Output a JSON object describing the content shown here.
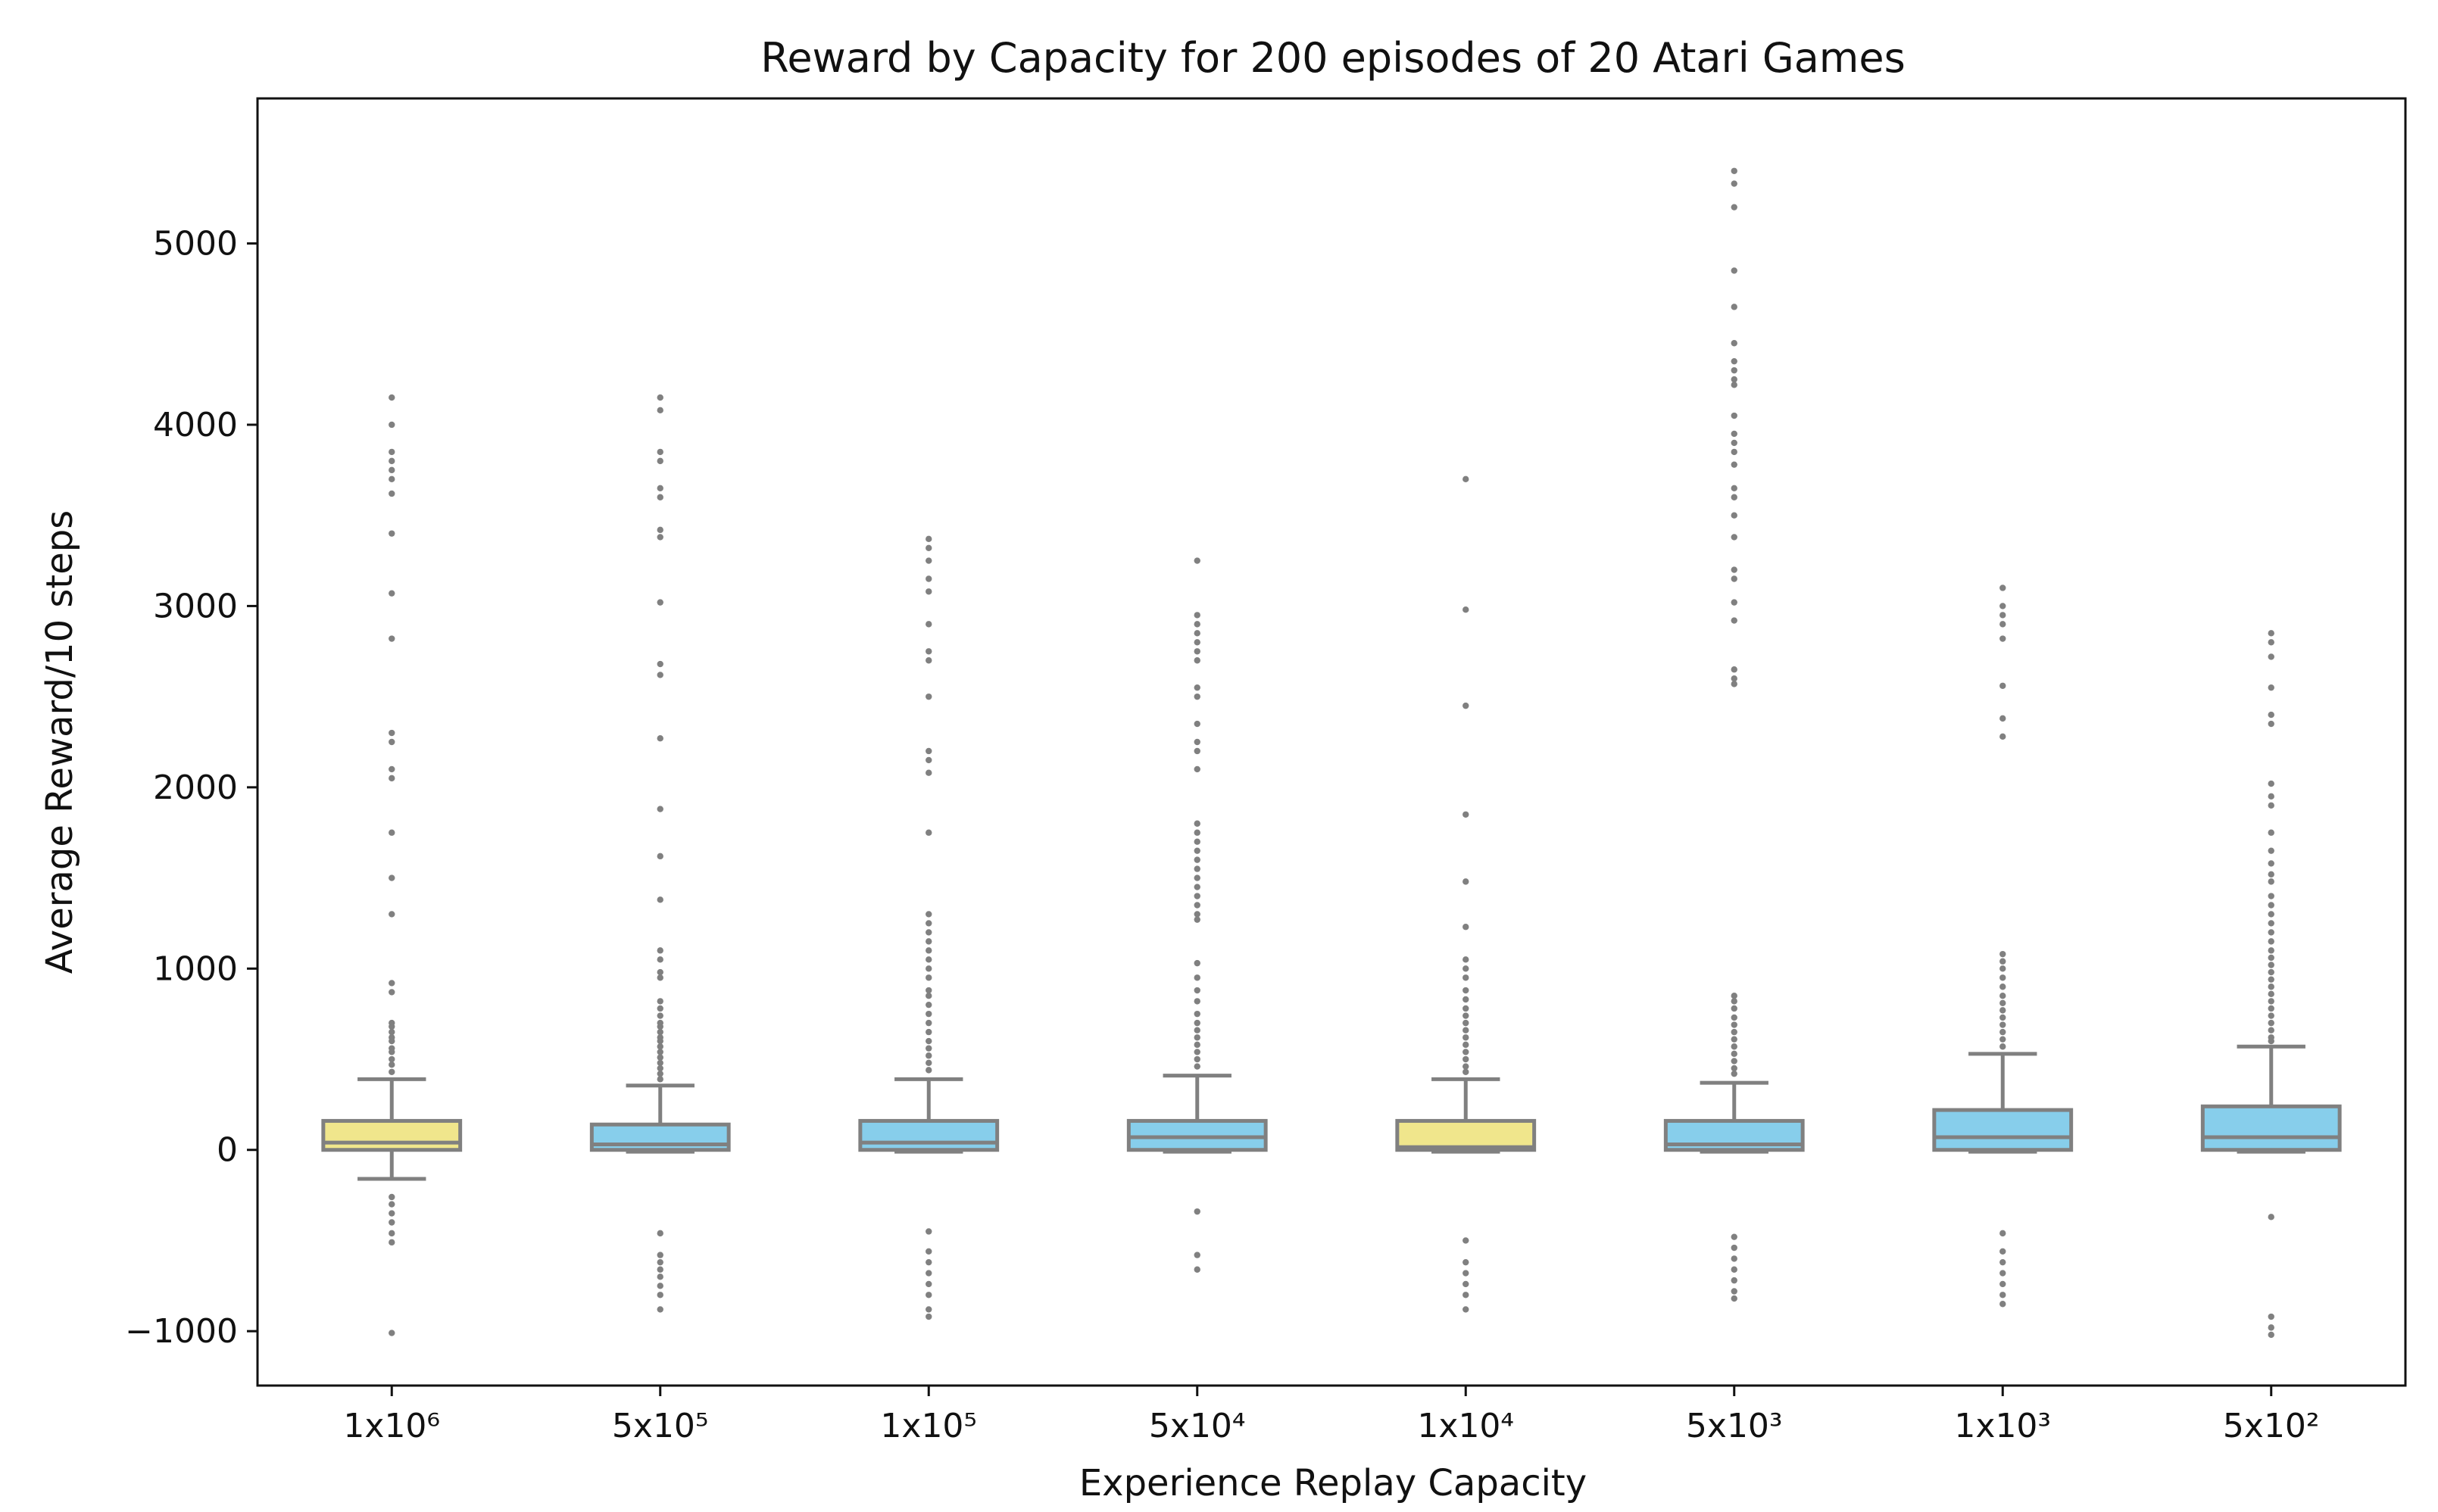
{
  "chart_data": {
    "type": "box",
    "title": "Reward by Capacity for 200 episodes of 20 Atari Games",
    "xlabel": "Experience Replay Capacity",
    "ylabel": "Average Reward/10 steps",
    "ylim": [
      -1300,
      5800
    ],
    "yticks": [
      -1000,
      0,
      1000,
      2000,
      3000,
      4000,
      5000
    ],
    "ytick_labels": [
      "−1000",
      "0",
      "1000",
      "2000",
      "3000",
      "4000",
      "5000"
    ],
    "categories": [
      "1x10⁶",
      "5x10⁵",
      "1x10⁵",
      "5x10⁴",
      "1x10⁴",
      "5x10³",
      "1x10³",
      "5x10²"
    ],
    "colors": {
      "highlight": "#f0e68c",
      "default": "#87ceeb",
      "stroke": "#808080",
      "outlier": "#808080"
    },
    "boxes": [
      {
        "label": "1x10⁶",
        "highlight": true,
        "whisker_low": -160,
        "q1": 0,
        "median": 40,
        "q3": 160,
        "whisker_high": 390,
        "outliers": [
          4150,
          4000,
          3850,
          3800,
          3750,
          3700,
          3620,
          3400,
          3070,
          2820,
          2300,
          2250,
          2100,
          2050,
          1750,
          1500,
          1300,
          920,
          870,
          700,
          680,
          650,
          620,
          600,
          560,
          540,
          500,
          470,
          430,
          -260,
          -300,
          -350,
          -400,
          -460,
          -510,
          -1010
        ]
      },
      {
        "label": "5x10⁵",
        "highlight": false,
        "whisker_low": -10,
        "q1": 0,
        "median": 30,
        "q3": 140,
        "whisker_high": 355,
        "outliers": [
          4150,
          4080,
          3850,
          3800,
          3650,
          3600,
          3420,
          3380,
          3020,
          2680,
          2620,
          2270,
          1880,
          1620,
          1380,
          1100,
          1050,
          980,
          950,
          820,
          780,
          740,
          700,
          680,
          650,
          620,
          600,
          570,
          540,
          510,
          480,
          450,
          420,
          390,
          -460,
          -580,
          -620,
          -660,
          -700,
          -750,
          -800,
          -880
        ]
      },
      {
        "label": "1x10⁵",
        "highlight": false,
        "whisker_low": -10,
        "q1": 0,
        "median": 40,
        "q3": 160,
        "whisker_high": 390,
        "outliers": [
          3370,
          3320,
          3250,
          3150,
          3080,
          2900,
          2750,
          2700,
          2500,
          2200,
          2150,
          2080,
          1750,
          1300,
          1250,
          1200,
          1150,
          1100,
          1050,
          1000,
          950,
          880,
          850,
          800,
          750,
          700,
          650,
          600,
          560,
          520,
          480,
          440,
          -450,
          -560,
          -620,
          -680,
          -740,
          -800,
          -880,
          -920
        ]
      },
      {
        "label": "5x10⁴",
        "highlight": false,
        "whisker_low": -10,
        "q1": 0,
        "median": 70,
        "q3": 160,
        "whisker_high": 410,
        "outliers": [
          3250,
          2950,
          2900,
          2850,
          2800,
          2750,
          2700,
          2550,
          2500,
          2350,
          2250,
          2200,
          2100,
          1800,
          1750,
          1700,
          1650,
          1600,
          1550,
          1500,
          1450,
          1400,
          1350,
          1300,
          1270,
          1030,
          950,
          880,
          820,
          750,
          700,
          660,
          620,
          580,
          540,
          500,
          460,
          -340,
          -580,
          -660
        ]
      },
      {
        "label": "1x10⁴",
        "highlight": true,
        "whisker_low": -10,
        "q1": 0,
        "median": 15,
        "q3": 160,
        "whisker_high": 390,
        "outliers": [
          3700,
          2980,
          2450,
          1850,
          1480,
          1230,
          1050,
          1000,
          950,
          880,
          830,
          780,
          740,
          700,
          660,
          620,
          580,
          540,
          500,
          460,
          430,
          -500,
          -620,
          -680,
          -740,
          -800,
          -880
        ]
      },
      {
        "label": "5x10³",
        "highlight": false,
        "whisker_low": -10,
        "q1": 0,
        "median": 30,
        "q3": 160,
        "whisker_high": 370,
        "outliers": [
          5400,
          5330,
          5200,
          4850,
          4650,
          4450,
          4350,
          4300,
          4250,
          4220,
          4050,
          3950,
          3900,
          3850,
          3780,
          3650,
          3600,
          3500,
          3380,
          3200,
          3150,
          3020,
          2920,
          2650,
          2600,
          2570,
          850,
          820,
          780,
          730,
          690,
          650,
          610,
          570,
          530,
          490,
          450,
          420,
          -480,
          -540,
          -600,
          -660,
          -720,
          -780,
          -820
        ]
      },
      {
        "label": "1x10³",
        "highlight": false,
        "whisker_low": -10,
        "q1": 0,
        "median": 70,
        "q3": 220,
        "whisker_high": 530,
        "outliers": [
          3100,
          3000,
          2950,
          2900,
          2820,
          2560,
          2380,
          2280,
          1080,
          1040,
          1000,
          950,
          900,
          850,
          810,
          770,
          730,
          690,
          650,
          610,
          570,
          -460,
          -560,
          -620,
          -680,
          -740,
          -800,
          -850
        ]
      },
      {
        "label": "5x10²",
        "highlight": false,
        "whisker_low": -10,
        "q1": 0,
        "median": 70,
        "q3": 240,
        "whisker_high": 570,
        "outliers": [
          2850,
          2800,
          2720,
          2550,
          2400,
          2350,
          2020,
          1950,
          1900,
          1750,
          1650,
          1580,
          1520,
          1480,
          1400,
          1350,
          1300,
          1250,
          1200,
          1150,
          1100,
          1060,
          1020,
          980,
          940,
          900,
          860,
          820,
          780,
          740,
          700,
          660,
          620,
          600,
          -370,
          -920,
          -980,
          -1020
        ]
      }
    ]
  }
}
